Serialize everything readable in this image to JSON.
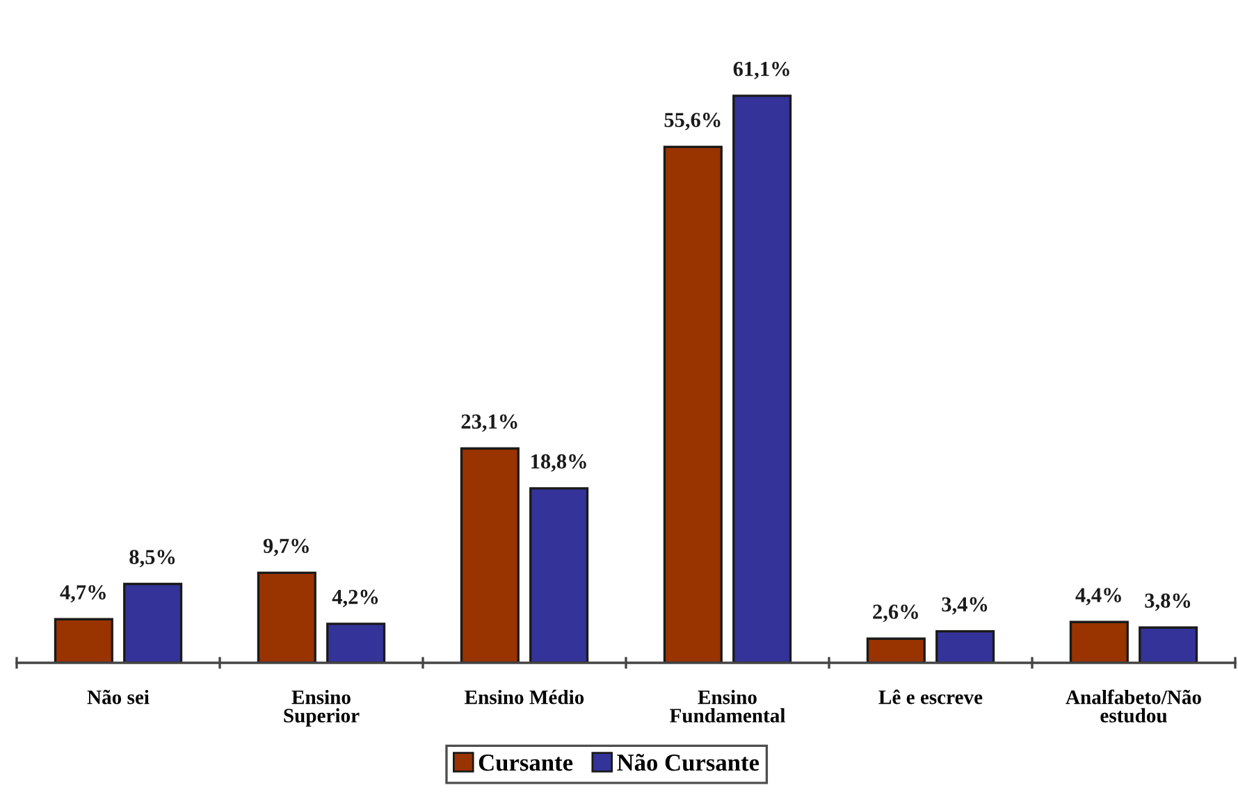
{
  "chart_data": {
    "type": "bar",
    "categories": [
      "Não sei",
      "Ensino\nSuperior",
      "Ensino Médio",
      "Ensino\nFundamental",
      "Lê e escreve",
      "Analfabeto/Não\nestudou"
    ],
    "series": [
      {
        "name": "Cursante",
        "color": "#993300",
        "values": [
          4.7,
          9.7,
          23.1,
          55.6,
          2.6,
          4.4
        ],
        "value_labels": [
          "4,7%",
          "9,7%",
          "23,1%",
          "55,6%",
          "2,6%",
          "4,4%"
        ]
      },
      {
        "name": "Não Cursante",
        "color": "#333399",
        "values": [
          8.5,
          4.2,
          18.8,
          61.1,
          3.4,
          3.8
        ],
        "value_labels": [
          "8,5%",
          "4,2%",
          "18,8%",
          "61,1%",
          "3,4%",
          "3,8%"
        ]
      }
    ],
    "legend": "bottom",
    "grid": false
  }
}
